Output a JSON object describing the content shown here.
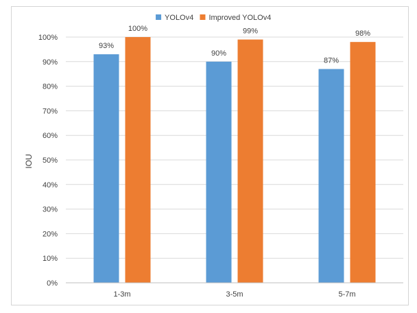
{
  "chart_data": {
    "type": "bar",
    "title": "",
    "xlabel": "",
    "ylabel": "IOU",
    "categories": [
      "1-3m",
      "3-5m",
      "5-7m"
    ],
    "ylim": [
      0,
      100
    ],
    "yticks": [
      0,
      10,
      20,
      30,
      40,
      50,
      60,
      70,
      80,
      90,
      100
    ],
    "ytick_labels": [
      "0%",
      "10%",
      "20%",
      "30%",
      "40%",
      "50%",
      "60%",
      "70%",
      "80%",
      "90%",
      "100%"
    ],
    "grid": true,
    "legend_position": "top",
    "series": [
      {
        "name": "YOLOv4",
        "color": "#5b9bd5",
        "values": [
          93,
          90,
          87
        ],
        "labels": [
          "93%",
          "90%",
          "87%"
        ]
      },
      {
        "name": "Improved YOLOv4",
        "color": "#ed7d31",
        "values": [
          100,
          99,
          98
        ],
        "labels": [
          "100%",
          "99%",
          "98%"
        ]
      }
    ]
  }
}
